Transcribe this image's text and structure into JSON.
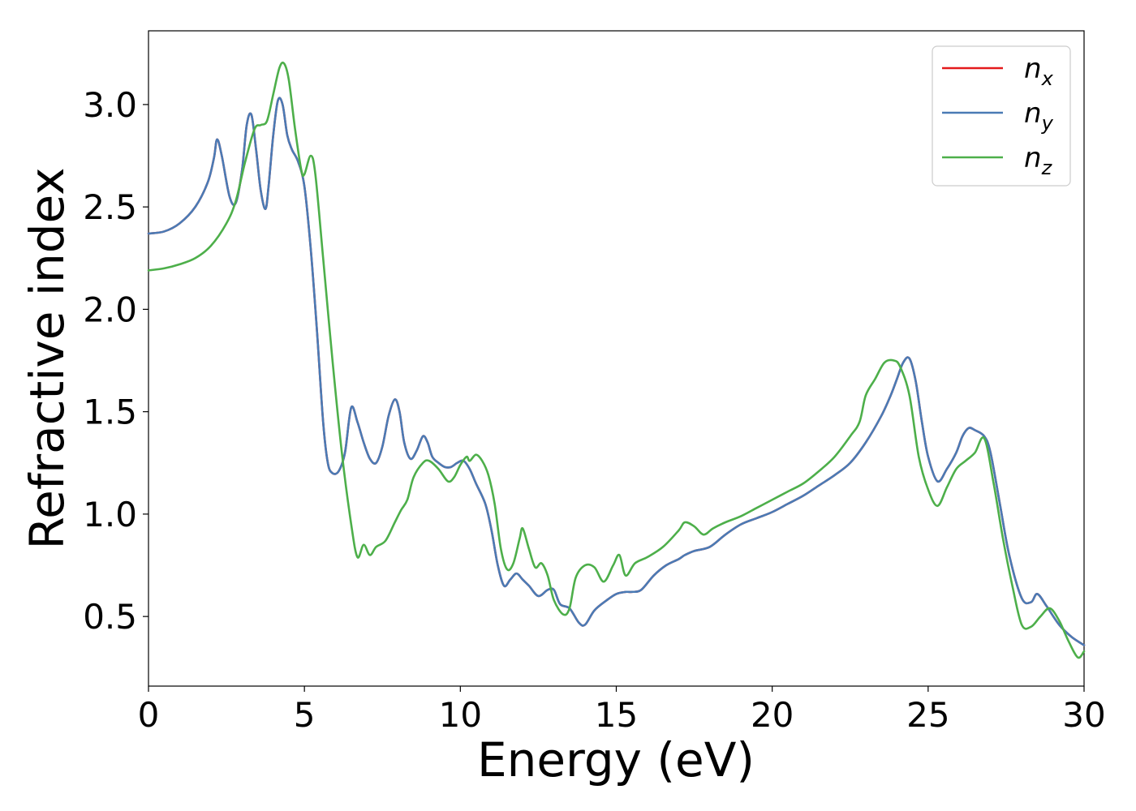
{
  "chart_data": {
    "type": "line",
    "xlabel": "Energy (eV)",
    "ylabel": "Refractive index",
    "xlim": [
      0,
      30
    ],
    "ylim": [
      0.16,
      3.36
    ],
    "x_ticks": [
      0,
      5,
      10,
      15,
      20,
      25,
      30
    ],
    "x_tick_labels": [
      "0",
      "5",
      "10",
      "15",
      "20",
      "25",
      "30"
    ],
    "y_ticks": [
      0.5,
      1.0,
      1.5,
      2.0,
      2.5,
      3.0
    ],
    "y_tick_labels": [
      "0.5",
      "1.0",
      "1.5",
      "2.0",
      "2.5",
      "3.0"
    ],
    "grid": false,
    "legend_position": "top-right",
    "series": [
      {
        "name": "n_x",
        "legend_base": "n",
        "legend_sub": "x",
        "color": "#e41a1c",
        "x": [
          0,
          0.5,
          1.0,
          1.5,
          1.9,
          2.1,
          2.2,
          2.35,
          2.6,
          2.8,
          3.0,
          3.15,
          3.3,
          3.45,
          3.6,
          3.75,
          3.85,
          4.0,
          4.15,
          4.3,
          4.45,
          4.6,
          4.8,
          5.0,
          5.2,
          5.4,
          5.6,
          5.75,
          5.9,
          6.1,
          6.3,
          6.5,
          6.7,
          6.9,
          7.1,
          7.3,
          7.5,
          7.7,
          7.9,
          8.05,
          8.2,
          8.4,
          8.6,
          8.8,
          8.95,
          9.1,
          9.3,
          9.5,
          9.7,
          9.9,
          10.1,
          10.3,
          10.5,
          10.8,
          11.0,
          11.2,
          11.4,
          11.6,
          11.8,
          12.0,
          12.2,
          12.5,
          12.8,
          13.0,
          13.2,
          13.5,
          13.8,
          14.0,
          14.3,
          14.7,
          15.0,
          15.3,
          15.5,
          15.8,
          16.2,
          16.6,
          17.0,
          17.2,
          17.5,
          18.0,
          18.5,
          19.0,
          19.5,
          20.0,
          20.5,
          21.0,
          21.5,
          22.0,
          22.5,
          23.0,
          23.5,
          23.8,
          24.0,
          24.2,
          24.4,
          24.6,
          24.8,
          25.0,
          25.3,
          25.6,
          25.9,
          26.1,
          26.3,
          26.5,
          26.8,
          27.0,
          27.3,
          27.6,
          28.0,
          28.3,
          28.5,
          28.8,
          29.2,
          29.6,
          30.0
        ],
        "y": [
          2.37,
          2.38,
          2.42,
          2.5,
          2.62,
          2.74,
          2.83,
          2.75,
          2.55,
          2.52,
          2.68,
          2.9,
          2.95,
          2.78,
          2.58,
          2.49,
          2.6,
          2.85,
          3.02,
          3.0,
          2.85,
          2.78,
          2.72,
          2.6,
          2.3,
          1.9,
          1.45,
          1.25,
          1.2,
          1.21,
          1.3,
          1.52,
          1.45,
          1.35,
          1.27,
          1.25,
          1.33,
          1.48,
          1.56,
          1.5,
          1.35,
          1.27,
          1.31,
          1.38,
          1.35,
          1.28,
          1.25,
          1.23,
          1.23,
          1.25,
          1.26,
          1.22,
          1.15,
          1.05,
          0.92,
          0.75,
          0.65,
          0.68,
          0.71,
          0.68,
          0.65,
          0.6,
          0.63,
          0.63,
          0.56,
          0.54,
          0.47,
          0.46,
          0.53,
          0.58,
          0.61,
          0.62,
          0.62,
          0.63,
          0.7,
          0.75,
          0.78,
          0.8,
          0.82,
          0.84,
          0.9,
          0.95,
          0.98,
          1.01,
          1.05,
          1.09,
          1.14,
          1.19,
          1.25,
          1.35,
          1.48,
          1.58,
          1.66,
          1.74,
          1.76,
          1.65,
          1.45,
          1.28,
          1.16,
          1.22,
          1.3,
          1.38,
          1.42,
          1.41,
          1.38,
          1.3,
          1.05,
          0.8,
          0.59,
          0.57,
          0.61,
          0.55,
          0.46,
          0.4,
          0.36
        ]
      },
      {
        "name": "n_y",
        "legend_base": "n",
        "legend_sub": "y",
        "color": "#4a7bb5",
        "x": [
          0,
          0.5,
          1.0,
          1.5,
          1.9,
          2.1,
          2.2,
          2.35,
          2.6,
          2.8,
          3.0,
          3.15,
          3.3,
          3.45,
          3.6,
          3.75,
          3.85,
          4.0,
          4.15,
          4.3,
          4.45,
          4.6,
          4.8,
          5.0,
          5.2,
          5.4,
          5.6,
          5.75,
          5.9,
          6.1,
          6.3,
          6.5,
          6.7,
          6.9,
          7.1,
          7.3,
          7.5,
          7.7,
          7.9,
          8.05,
          8.2,
          8.4,
          8.6,
          8.8,
          8.95,
          9.1,
          9.3,
          9.5,
          9.7,
          9.9,
          10.1,
          10.3,
          10.5,
          10.8,
          11.0,
          11.2,
          11.4,
          11.6,
          11.8,
          12.0,
          12.2,
          12.5,
          12.8,
          13.0,
          13.2,
          13.5,
          13.8,
          14.0,
          14.3,
          14.7,
          15.0,
          15.3,
          15.5,
          15.8,
          16.2,
          16.6,
          17.0,
          17.2,
          17.5,
          18.0,
          18.5,
          19.0,
          19.5,
          20.0,
          20.5,
          21.0,
          21.5,
          22.0,
          22.5,
          23.0,
          23.5,
          23.8,
          24.0,
          24.2,
          24.4,
          24.6,
          24.8,
          25.0,
          25.3,
          25.6,
          25.9,
          26.1,
          26.3,
          26.5,
          26.8,
          27.0,
          27.3,
          27.6,
          28.0,
          28.3,
          28.5,
          28.8,
          29.2,
          29.6,
          30.0
        ],
        "y": [
          2.37,
          2.38,
          2.42,
          2.5,
          2.62,
          2.74,
          2.83,
          2.75,
          2.55,
          2.52,
          2.68,
          2.9,
          2.95,
          2.78,
          2.58,
          2.49,
          2.6,
          2.85,
          3.02,
          3.0,
          2.85,
          2.78,
          2.72,
          2.6,
          2.3,
          1.9,
          1.45,
          1.25,
          1.2,
          1.21,
          1.3,
          1.52,
          1.45,
          1.35,
          1.27,
          1.25,
          1.33,
          1.48,
          1.56,
          1.5,
          1.35,
          1.27,
          1.31,
          1.38,
          1.35,
          1.28,
          1.25,
          1.23,
          1.23,
          1.25,
          1.26,
          1.22,
          1.15,
          1.05,
          0.92,
          0.75,
          0.65,
          0.68,
          0.71,
          0.68,
          0.65,
          0.6,
          0.63,
          0.63,
          0.56,
          0.54,
          0.47,
          0.46,
          0.53,
          0.58,
          0.61,
          0.62,
          0.62,
          0.63,
          0.7,
          0.75,
          0.78,
          0.8,
          0.82,
          0.84,
          0.9,
          0.95,
          0.98,
          1.01,
          1.05,
          1.09,
          1.14,
          1.19,
          1.25,
          1.35,
          1.48,
          1.58,
          1.66,
          1.74,
          1.76,
          1.65,
          1.45,
          1.28,
          1.16,
          1.22,
          1.3,
          1.38,
          1.42,
          1.41,
          1.38,
          1.3,
          1.05,
          0.8,
          0.59,
          0.57,
          0.61,
          0.55,
          0.46,
          0.4,
          0.36
        ]
      },
      {
        "name": "n_z",
        "legend_base": "n",
        "legend_sub": "z",
        "color": "#4daf4a",
        "x": [
          0,
          0.5,
          1.0,
          1.5,
          2.0,
          2.5,
          2.8,
          3.1,
          3.4,
          3.6,
          3.8,
          4.0,
          4.2,
          4.35,
          4.5,
          4.7,
          4.9,
          5.0,
          5.2,
          5.35,
          5.6,
          5.9,
          6.2,
          6.5,
          6.7,
          6.9,
          7.1,
          7.3,
          7.6,
          7.9,
          8.1,
          8.3,
          8.5,
          8.8,
          9.0,
          9.3,
          9.6,
          9.8,
          10.0,
          10.2,
          10.3,
          10.5,
          10.7,
          10.9,
          11.1,
          11.3,
          11.5,
          11.7,
          11.9,
          12.0,
          12.2,
          12.4,
          12.6,
          12.8,
          13.0,
          13.3,
          13.5,
          13.7,
          14.0,
          14.3,
          14.6,
          14.9,
          15.1,
          15.3,
          15.6,
          16.0,
          16.5,
          17.0,
          17.2,
          17.5,
          17.8,
          18.1,
          18.5,
          19.0,
          19.5,
          20.0,
          20.5,
          21.0,
          21.5,
          22.0,
          22.5,
          22.8,
          23.0,
          23.3,
          23.6,
          23.9,
          24.1,
          24.4,
          24.7,
          25.0,
          25.3,
          25.6,
          25.9,
          26.2,
          26.5,
          26.8,
          27.1,
          27.4,
          27.7,
          28.0,
          28.3,
          28.6,
          28.9,
          29.2,
          29.5,
          29.8,
          30.0
        ],
        "y": [
          2.19,
          2.2,
          2.22,
          2.25,
          2.31,
          2.42,
          2.53,
          2.72,
          2.88,
          2.9,
          2.92,
          3.05,
          3.18,
          3.2,
          3.12,
          2.88,
          2.68,
          2.66,
          2.75,
          2.66,
          2.25,
          1.75,
          1.3,
          0.95,
          0.79,
          0.85,
          0.8,
          0.84,
          0.87,
          0.96,
          1.02,
          1.07,
          1.18,
          1.25,
          1.26,
          1.22,
          1.16,
          1.18,
          1.24,
          1.28,
          1.26,
          1.29,
          1.26,
          1.19,
          1.05,
          0.83,
          0.73,
          0.76,
          0.88,
          0.93,
          0.83,
          0.74,
          0.76,
          0.7,
          0.58,
          0.51,
          0.54,
          0.69,
          0.75,
          0.74,
          0.67,
          0.75,
          0.8,
          0.7,
          0.76,
          0.79,
          0.84,
          0.92,
          0.96,
          0.94,
          0.9,
          0.93,
          0.96,
          0.99,
          1.03,
          1.07,
          1.11,
          1.15,
          1.21,
          1.28,
          1.38,
          1.45,
          1.58,
          1.66,
          1.74,
          1.75,
          1.72,
          1.58,
          1.28,
          1.12,
          1.04,
          1.13,
          1.22,
          1.26,
          1.3,
          1.37,
          1.15,
          0.88,
          0.65,
          0.46,
          0.45,
          0.5,
          0.54,
          0.48,
          0.38,
          0.3,
          0.33
        ]
      }
    ]
  }
}
